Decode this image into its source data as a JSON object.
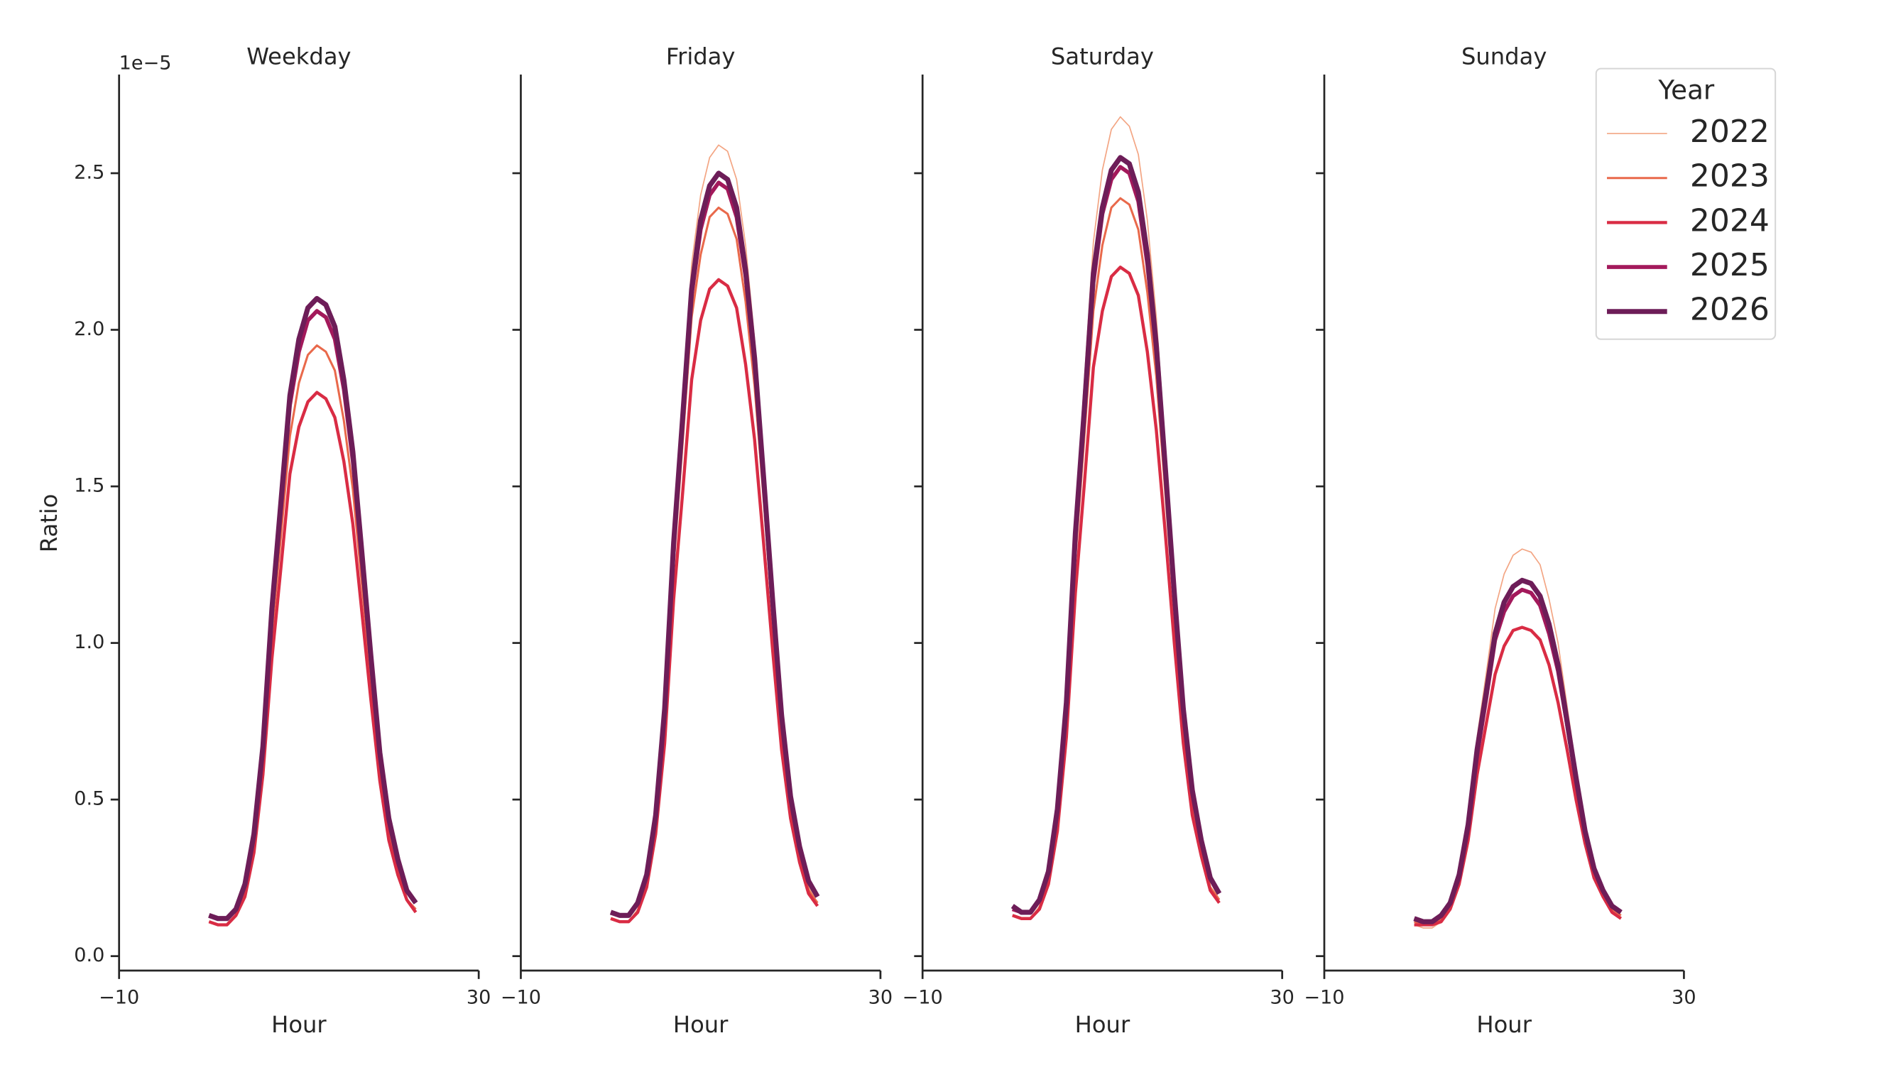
{
  "chart_data": [
    {
      "type": "line",
      "title": "Weekday",
      "xlabel": "Hour",
      "ylabel": "Ratio",
      "y_offset_label": "1e−5",
      "show_ytick_labels": true,
      "xlim": [
        -10,
        30
      ],
      "xticks": [
        {
          "value": -10,
          "label": "−10"
        },
        30
      ],
      "ylim": [
        -0.046,
        2.815
      ],
      "yticks": [
        {
          "value": 0,
          "label": "0.0"
        },
        0.5,
        {
          "value": 1,
          "label": "1.0"
        },
        1.5,
        {
          "value": 2,
          "label": "2.0"
        },
        2.5
      ],
      "x": [
        0,
        1,
        2,
        3,
        4,
        5,
        6,
        7,
        8,
        9,
        10,
        11,
        12,
        13,
        14,
        15,
        16,
        17,
        18,
        19,
        20,
        21,
        22,
        23
      ],
      "series": [
        {
          "name": "2022",
          "color": "#f3a583",
          "values": [
            0.11,
            0.1,
            0.1,
            0.13,
            0.2,
            0.35,
            0.62,
            1.03,
            1.34,
            1.66,
            1.83,
            1.92,
            1.95,
            1.93,
            1.87,
            1.71,
            1.49,
            1.19,
            0.89,
            0.6,
            0.4,
            0.28,
            0.18,
            0.15
          ]
        },
        {
          "name": "2023",
          "color": "#e9694b",
          "values": [
            0.11,
            0.1,
            0.1,
            0.13,
            0.2,
            0.35,
            0.62,
            1.03,
            1.34,
            1.66,
            1.83,
            1.92,
            1.95,
            1.93,
            1.87,
            1.71,
            1.49,
            1.19,
            0.89,
            0.6,
            0.4,
            0.28,
            0.18,
            0.15
          ]
        },
        {
          "name": "2024",
          "color": "#d92c44",
          "values": [
            0.11,
            0.1,
            0.1,
            0.13,
            0.19,
            0.33,
            0.58,
            0.95,
            1.24,
            1.54,
            1.69,
            1.77,
            1.8,
            1.78,
            1.72,
            1.58,
            1.38,
            1.1,
            0.82,
            0.56,
            0.37,
            0.26,
            0.18,
            0.14
          ]
        },
        {
          "name": "2025",
          "color": "#a3195b",
          "values": [
            0.13,
            0.12,
            0.12,
            0.15,
            0.23,
            0.38,
            0.66,
            1.09,
            1.42,
            1.76,
            1.93,
            2.03,
            2.06,
            2.04,
            1.97,
            1.81,
            1.58,
            1.26,
            0.94,
            0.64,
            0.43,
            0.3,
            0.21,
            0.17
          ]
        },
        {
          "name": "2026",
          "color": "#6d1d58",
          "values": [
            0.13,
            0.12,
            0.12,
            0.15,
            0.23,
            0.39,
            0.67,
            1.11,
            1.45,
            1.79,
            1.97,
            2.07,
            2.1,
            2.08,
            2.01,
            1.84,
            1.61,
            1.29,
            0.96,
            0.65,
            0.44,
            0.31,
            0.21,
            0.17
          ]
        }
      ]
    },
    {
      "type": "line",
      "title": "Friday",
      "xlabel": "Hour",
      "show_ytick_labels": false,
      "xlim": [
        -10,
        30
      ],
      "xticks": [
        {
          "value": -10,
          "label": "−10"
        },
        30
      ],
      "ylim": [
        -0.046,
        2.815
      ],
      "yticks": [
        0,
        0.5,
        1,
        1.5,
        2,
        2.5
      ],
      "x": [
        0,
        1,
        2,
        3,
        4,
        5,
        6,
        7,
        8,
        9,
        10,
        11,
        12,
        13,
        14,
        15,
        16,
        17,
        18,
        19,
        20,
        21,
        22,
        23
      ],
      "series": [
        {
          "name": "2022",
          "color": "#f3a583",
          "values": [
            0.12,
            0.11,
            0.11,
            0.15,
            0.25,
            0.44,
            0.8,
            1.35,
            1.77,
            2.21,
            2.43,
            2.55,
            2.59,
            2.57,
            2.48,
            2.27,
            1.97,
            1.57,
            1.16,
            0.78,
            0.51,
            0.35,
            0.22,
            0.17
          ]
        },
        {
          "name": "2023",
          "color": "#e9694b",
          "values": [
            0.12,
            0.11,
            0.11,
            0.14,
            0.24,
            0.42,
            0.75,
            1.25,
            1.64,
            2.04,
            2.24,
            2.36,
            2.39,
            2.37,
            2.29,
            2.09,
            1.82,
            1.46,
            1.08,
            0.73,
            0.47,
            0.33,
            0.21,
            0.17
          ]
        },
        {
          "name": "2024",
          "color": "#d92c44",
          "values": [
            0.12,
            0.11,
            0.11,
            0.14,
            0.22,
            0.39,
            0.68,
            1.14,
            1.48,
            1.84,
            2.03,
            2.13,
            2.16,
            2.14,
            2.07,
            1.89,
            1.65,
            1.32,
            0.98,
            0.66,
            0.44,
            0.3,
            0.2,
            0.16
          ]
        },
        {
          "name": "2025",
          "color": "#a3195b",
          "values": [
            0.14,
            0.13,
            0.13,
            0.17,
            0.26,
            0.45,
            0.79,
            1.3,
            1.7,
            2.11,
            2.32,
            2.43,
            2.47,
            2.45,
            2.36,
            2.17,
            1.89,
            1.51,
            1.12,
            0.76,
            0.5,
            0.35,
            0.24,
            0.19
          ]
        },
        {
          "name": "2026",
          "color": "#6d1d58",
          "values": [
            0.14,
            0.13,
            0.13,
            0.17,
            0.26,
            0.45,
            0.79,
            1.32,
            1.72,
            2.13,
            2.35,
            2.46,
            2.5,
            2.48,
            2.39,
            2.19,
            1.91,
            1.53,
            1.14,
            0.77,
            0.51,
            0.35,
            0.24,
            0.19
          ]
        }
      ]
    },
    {
      "type": "line",
      "title": "Saturday",
      "xlabel": "Hour",
      "show_ytick_labels": false,
      "xlim": [
        -10,
        30
      ],
      "xticks": [
        {
          "value": -10,
          "label": "−10"
        },
        30
      ],
      "ylim": [
        -0.046,
        2.815
      ],
      "yticks": [
        0,
        0.5,
        1,
        1.5,
        2,
        2.5
      ],
      "x": [
        0,
        1,
        2,
        3,
        4,
        5,
        6,
        7,
        8,
        9,
        10,
        11,
        12,
        13,
        14,
        15,
        16,
        17,
        18,
        19,
        20,
        21,
        22,
        23
      ],
      "series": [
        {
          "name": "2022",
          "color": "#f3a583",
          "values": [
            0.13,
            0.12,
            0.12,
            0.16,
            0.26,
            0.47,
            0.84,
            1.4,
            1.84,
            2.28,
            2.51,
            2.64,
            2.68,
            2.65,
            2.56,
            2.35,
            2.04,
            1.63,
            1.21,
            0.81,
            0.53,
            0.36,
            0.24,
            0.18
          ]
        },
        {
          "name": "2023",
          "color": "#e9694b",
          "values": [
            0.13,
            0.12,
            0.12,
            0.15,
            0.25,
            0.43,
            0.76,
            1.27,
            1.66,
            2.06,
            2.27,
            2.39,
            2.42,
            2.4,
            2.32,
            2.12,
            1.85,
            1.48,
            1.1,
            0.74,
            0.49,
            0.34,
            0.22,
            0.18
          ]
        },
        {
          "name": "2024",
          "color": "#d92c44",
          "values": [
            0.13,
            0.12,
            0.12,
            0.15,
            0.23,
            0.4,
            0.7,
            1.16,
            1.51,
            1.88,
            2.06,
            2.17,
            2.2,
            2.18,
            2.11,
            1.93,
            1.68,
            1.35,
            1.0,
            0.68,
            0.45,
            0.32,
            0.21,
            0.17
          ]
        },
        {
          "name": "2025",
          "color": "#a3195b",
          "values": [
            0.15,
            0.14,
            0.14,
            0.18,
            0.27,
            0.46,
            0.81,
            1.33,
            1.73,
            2.15,
            2.37,
            2.48,
            2.52,
            2.5,
            2.41,
            2.21,
            1.93,
            1.54,
            1.15,
            0.78,
            0.52,
            0.37,
            0.25,
            0.2
          ]
        },
        {
          "name": "2026",
          "color": "#6d1d58",
          "values": [
            0.16,
            0.14,
            0.14,
            0.18,
            0.27,
            0.47,
            0.81,
            1.35,
            1.75,
            2.18,
            2.39,
            2.51,
            2.55,
            2.53,
            2.44,
            2.24,
            1.95,
            1.56,
            1.16,
            0.79,
            0.53,
            0.37,
            0.25,
            0.2
          ]
        }
      ]
    },
    {
      "type": "line",
      "title": "Sunday",
      "xlabel": "Hour",
      "show_ytick_labels": false,
      "legend_title": "Year",
      "legend": "upper right",
      "xlim": [
        -10,
        30
      ],
      "xticks": [
        {
          "value": -10,
          "label": "−10"
        },
        30
      ],
      "ylim": [
        -0.046,
        2.815
      ],
      "yticks": [
        0,
        0.5,
        1,
        1.5,
        2,
        2.5
      ],
      "x": [
        0,
        1,
        2,
        3,
        4,
        5,
        6,
        7,
        8,
        9,
        10,
        11,
        12,
        13,
        14,
        15,
        16,
        17,
        18,
        19,
        20,
        21,
        22,
        23
      ],
      "series": [
        {
          "name": "2022",
          "color": "#f3a583",
          "values": [
            0.1,
            0.09,
            0.09,
            0.11,
            0.16,
            0.25,
            0.43,
            0.7,
            0.9,
            1.11,
            1.22,
            1.28,
            1.3,
            1.29,
            1.25,
            1.14,
            1.0,
            0.8,
            0.6,
            0.42,
            0.28,
            0.2,
            0.14,
            0.12
          ]
        },
        {
          "name": "2023",
          "color": "#e9694b",
          "values": [
            0.11,
            0.1,
            0.1,
            0.12,
            0.16,
            0.24,
            0.4,
            0.64,
            0.82,
            1.0,
            1.1,
            1.15,
            1.17,
            1.16,
            1.12,
            1.03,
            0.9,
            0.73,
            0.55,
            0.39,
            0.27,
            0.2,
            0.15,
            0.13
          ]
        },
        {
          "name": "2024",
          "color": "#d92c44",
          "values": [
            0.1,
            0.1,
            0.1,
            0.11,
            0.15,
            0.23,
            0.37,
            0.58,
            0.74,
            0.9,
            0.99,
            1.04,
            1.05,
            1.04,
            1.01,
            0.93,
            0.81,
            0.66,
            0.5,
            0.36,
            0.25,
            0.19,
            0.14,
            0.12
          ]
        },
        {
          "name": "2025",
          "color": "#a3195b",
          "values": [
            0.12,
            0.11,
            0.11,
            0.13,
            0.17,
            0.25,
            0.41,
            0.64,
            0.82,
            1.01,
            1.1,
            1.15,
            1.17,
            1.16,
            1.12,
            1.03,
            0.91,
            0.74,
            0.56,
            0.4,
            0.28,
            0.21,
            0.16,
            0.14
          ]
        },
        {
          "name": "2026",
          "color": "#6d1d58",
          "values": [
            0.12,
            0.11,
            0.11,
            0.13,
            0.17,
            0.26,
            0.42,
            0.66,
            0.84,
            1.03,
            1.13,
            1.18,
            1.2,
            1.19,
            1.15,
            1.06,
            0.93,
            0.75,
            0.57,
            0.4,
            0.28,
            0.21,
            0.16,
            0.14
          ]
        }
      ]
    }
  ]
}
